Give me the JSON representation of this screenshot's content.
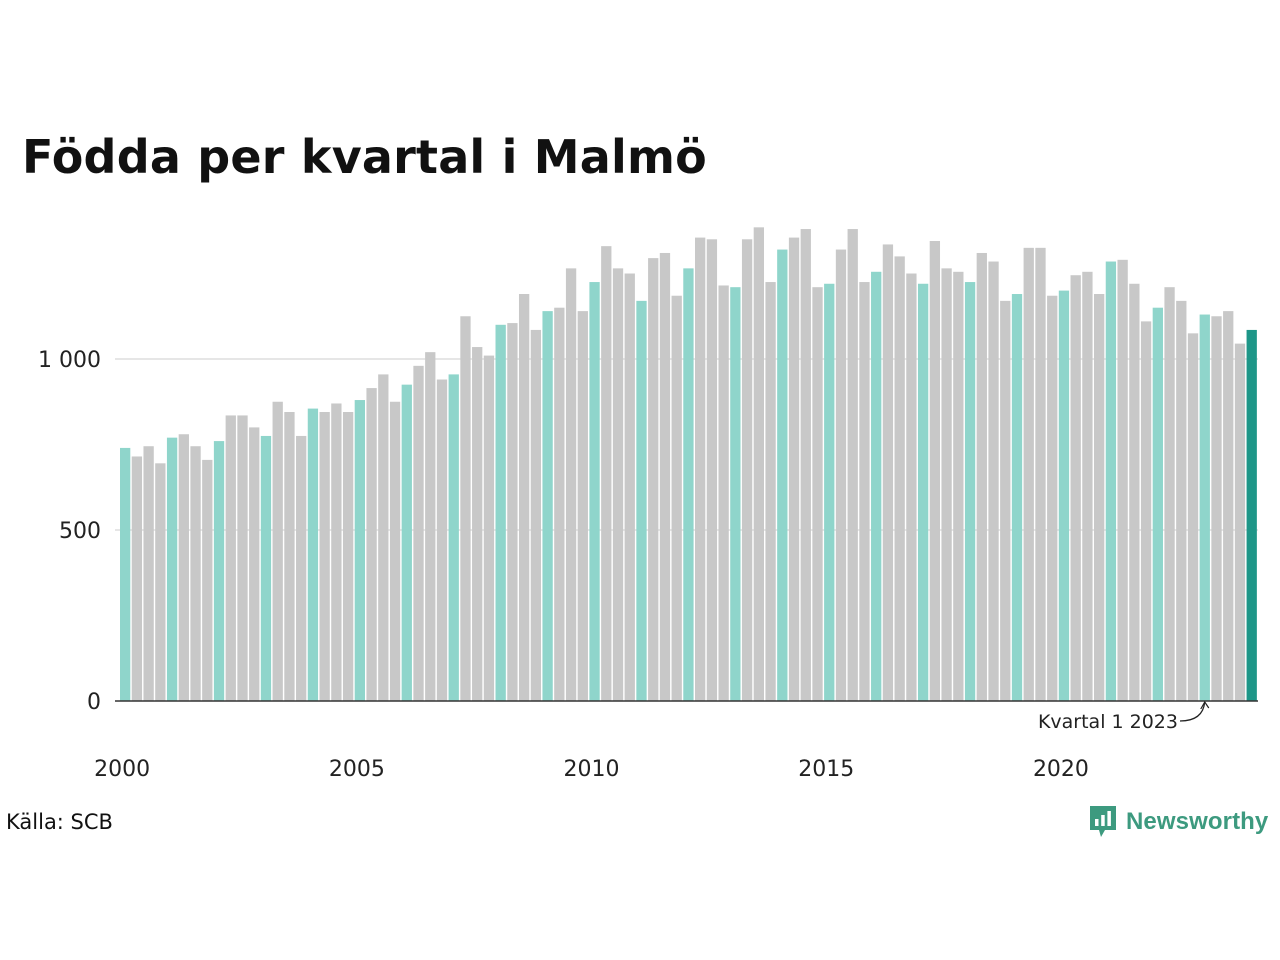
{
  "chart_data": {
    "type": "bar",
    "title": "Födda per kvartal i Malmö",
    "source": "Källa: SCB",
    "brand": "Newsworthy",
    "annotation": {
      "text": "Kvartal 1 2023",
      "target_index": 92
    },
    "x_tick_labels": [
      "2000",
      "2005",
      "2010",
      "2015",
      "2020"
    ],
    "first_year": 2000,
    "ylim": [
      0,
      1500
    ],
    "y_ticks": [
      {
        "value": 0,
        "label": "0"
      },
      {
        "value": 500,
        "label": "500"
      },
      {
        "value": 1000,
        "label": "1 000"
      }
    ],
    "colors": {
      "q1": "#8fd5cb",
      "other": "#c8c8c8",
      "latest": "#1e9688",
      "grid": "#e6e6e6",
      "axis": "#333333",
      "brand": "#3d9a7f"
    },
    "values": [
      740,
      715,
      745,
      695,
      770,
      780,
      745,
      705,
      760,
      835,
      835,
      800,
      775,
      875,
      845,
      775,
      855,
      845,
      870,
      845,
      880,
      915,
      955,
      875,
      925,
      980,
      1020,
      940,
      955,
      1125,
      1035,
      1010,
      1100,
      1105,
      1190,
      1085,
      1140,
      1150,
      1265,
      1140,
      1225,
      1330,
      1265,
      1250,
      1170,
      1295,
      1310,
      1185,
      1265,
      1355,
      1350,
      1215,
      1210,
      1350,
      1385,
      1225,
      1320,
      1355,
      1380,
      1210,
      1220,
      1320,
      1380,
      1225,
      1255,
      1335,
      1300,
      1250,
      1220,
      1345,
      1265,
      1255,
      1225,
      1310,
      1285,
      1170,
      1190,
      1325,
      1325,
      1185,
      1200,
      1245,
      1255,
      1190,
      1285,
      1290,
      1220,
      1110,
      1150,
      1210,
      1170,
      1075,
      1130,
      1125,
      1140,
      1045,
      1085
    ]
  }
}
